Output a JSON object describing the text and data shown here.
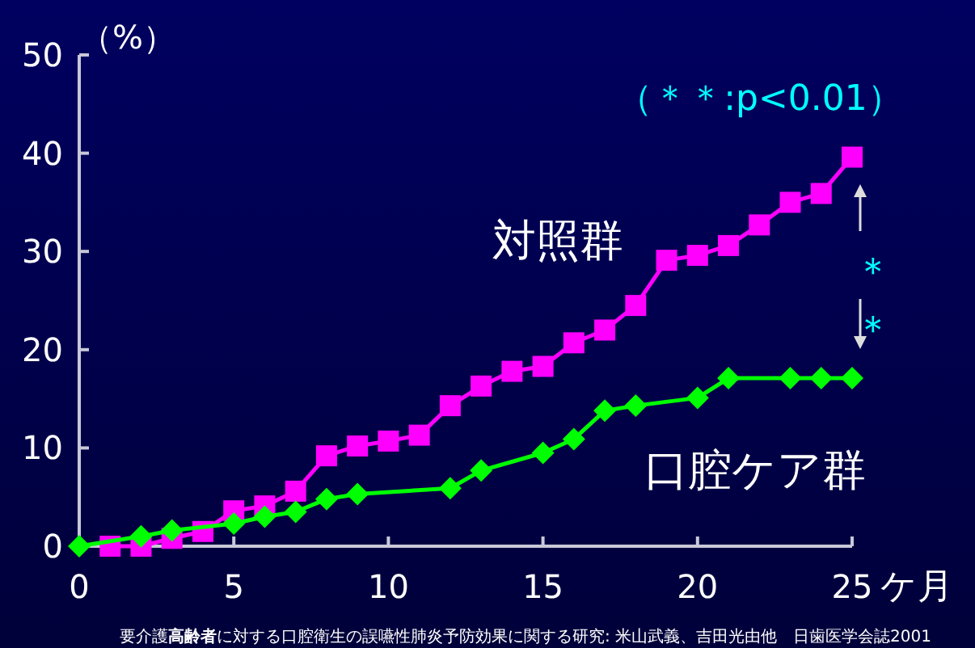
{
  "chart_data": {
    "type": "line",
    "ylabel": "（%）",
    "xlabel": "ケ月",
    "xlim": [
      0,
      25
    ],
    "ylim": [
      0,
      50
    ],
    "xticks": [
      0,
      5,
      10,
      15,
      20,
      25
    ],
    "yticks": [
      0,
      10,
      20,
      30,
      40,
      50
    ],
    "grid": false,
    "line_style": "solid",
    "series": [
      {
        "name": "対照群",
        "color": "#ff00ff",
        "marker": "square",
        "x": [
          1,
          2,
          3,
          4,
          5,
          6,
          7,
          8,
          9,
          10,
          11,
          12,
          13,
          14,
          15,
          16,
          17,
          18,
          19,
          20,
          21,
          22,
          23,
          24,
          25
        ],
        "values": [
          0,
          0,
          0.8,
          1.5,
          3.6,
          4.1,
          5.6,
          9.2,
          10.2,
          10.7,
          11.3,
          14.3,
          16.3,
          17.8,
          18.3,
          20.7,
          22.0,
          24.5,
          29.1,
          29.6,
          30.6,
          32.7,
          35.0,
          35.9,
          39.6
        ]
      },
      {
        "name": "口腔ケア群",
        "color": "#00ff00",
        "marker": "diamond",
        "x": [
          0,
          2,
          3,
          5,
          6,
          7,
          8,
          9,
          12,
          13,
          15,
          16,
          17,
          18,
          20,
          21,
          23,
          24,
          25
        ],
        "values": [
          0,
          1.0,
          1.6,
          2.3,
          3.0,
          3.5,
          4.8,
          5.3,
          5.9,
          7.7,
          9.5,
          10.9,
          13.8,
          14.3,
          15.1,
          17.1,
          17.1,
          17.1,
          17.1
        ]
      }
    ],
    "annotations": [
      "（＊＊:p<0.01）",
      "＊＊",
      "要介護**高齢者**に対する口腔衛生の誤嚥性肺炎予防効果に関する研究: 米山武義、吉田光由他　日歯医学会誌2001"
    ]
  }
}
